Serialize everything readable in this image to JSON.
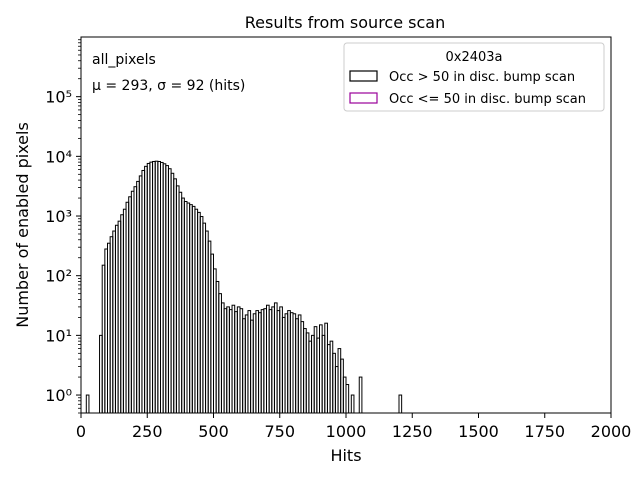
{
  "chart_data": {
    "type": "histogram",
    "title": "Results from source scan",
    "xlabel": "Hits",
    "ylabel": "Number of enabled pixels",
    "xlim": [
      0,
      2000
    ],
    "ylim": [
      0.5,
      1000000
    ],
    "yscale": "log",
    "grid": false,
    "x_ticks": [
      0,
      250,
      500,
      750,
      1000,
      1250,
      1500,
      1750,
      2000
    ],
    "x_tick_labels": [
      "0",
      "250",
      "500",
      "750",
      "1000",
      "1250",
      "1500",
      "1750",
      "2000"
    ],
    "y_ticks": [
      1,
      10,
      100,
      1000,
      10000,
      100000
    ],
    "y_tick_labels": [
      "10⁰",
      "10¹",
      "10²",
      "10³",
      "10⁴",
      "10⁵"
    ],
    "bin_width": 10,
    "annotations": {
      "dataset": "all_pixels",
      "stats": "μ = 293, σ = 92 (hits)"
    },
    "legend": {
      "title": "0x2403a",
      "placement": "top-right",
      "entries": [
        {
          "label": "Occ > 50 in disc. bump scan",
          "color": "#000000"
        },
        {
          "label": "Occ <= 50 in disc. bump scan",
          "color": "#990099"
        }
      ]
    },
    "series": [
      {
        "name": "Occ > 50 in disc. bump scan",
        "color": "#000000",
        "bins": [
          [
            20,
            1
          ],
          [
            70,
            10
          ],
          [
            80,
            150
          ],
          [
            90,
            280
          ],
          [
            100,
            350
          ],
          [
            110,
            450
          ],
          [
            120,
            560
          ],
          [
            130,
            700
          ],
          [
            140,
            820
          ],
          [
            150,
            1050
          ],
          [
            160,
            1300
          ],
          [
            170,
            1700
          ],
          [
            180,
            2100
          ],
          [
            190,
            2600
          ],
          [
            200,
            3100
          ],
          [
            210,
            3800
          ],
          [
            220,
            4700
          ],
          [
            230,
            5800
          ],
          [
            240,
            6800
          ],
          [
            250,
            7600
          ],
          [
            260,
            8000
          ],
          [
            270,
            8200
          ],
          [
            280,
            8300
          ],
          [
            290,
            8200
          ],
          [
            300,
            7900
          ],
          [
            310,
            7500
          ],
          [
            320,
            7000
          ],
          [
            330,
            6200
          ],
          [
            340,
            5200
          ],
          [
            350,
            4200
          ],
          [
            360,
            3200
          ],
          [
            370,
            2500
          ],
          [
            380,
            2000
          ],
          [
            390,
            1750
          ],
          [
            400,
            1650
          ],
          [
            410,
            1550
          ],
          [
            420,
            1450
          ],
          [
            430,
            1300
          ],
          [
            440,
            1150
          ],
          [
            450,
            980
          ],
          [
            460,
            760
          ],
          [
            470,
            560
          ],
          [
            480,
            380
          ],
          [
            490,
            230
          ],
          [
            500,
            130
          ],
          [
            510,
            80
          ],
          [
            520,
            50
          ],
          [
            530,
            35
          ],
          [
            540,
            28
          ],
          [
            550,
            30
          ],
          [
            560,
            27
          ],
          [
            570,
            32
          ],
          [
            580,
            25
          ],
          [
            590,
            30
          ],
          [
            600,
            28
          ],
          [
            610,
            19
          ],
          [
            620,
            22
          ],
          [
            630,
            26
          ],
          [
            640,
            18
          ],
          [
            650,
            23
          ],
          [
            660,
            26
          ],
          [
            670,
            24
          ],
          [
            680,
            27
          ],
          [
            690,
            28
          ],
          [
            700,
            32
          ],
          [
            710,
            27
          ],
          [
            720,
            30
          ],
          [
            730,
            35
          ],
          [
            740,
            26
          ],
          [
            750,
            30
          ],
          [
            760,
            20
          ],
          [
            770,
            23
          ],
          [
            780,
            26
          ],
          [
            790,
            24
          ],
          [
            800,
            23
          ],
          [
            810,
            19
          ],
          [
            820,
            22
          ],
          [
            830,
            17
          ],
          [
            840,
            13
          ],
          [
            850,
            11
          ],
          [
            860,
            8
          ],
          [
            870,
            10
          ],
          [
            880,
            14
          ],
          [
            890,
            9
          ],
          [
            900,
            15
          ],
          [
            910,
            10
          ],
          [
            920,
            16
          ],
          [
            930,
            7
          ],
          [
            940,
            8
          ],
          [
            950,
            5
          ],
          [
            960,
            3
          ],
          [
            970,
            6
          ],
          [
            980,
            4
          ],
          [
            990,
            2
          ],
          [
            1000,
            1.5
          ],
          [
            1020,
            1
          ],
          [
            1050,
            2
          ],
          [
            1200,
            1
          ]
        ]
      },
      {
        "name": "Occ <= 50 in disc. bump scan",
        "color": "#990099",
        "bins": []
      }
    ]
  }
}
